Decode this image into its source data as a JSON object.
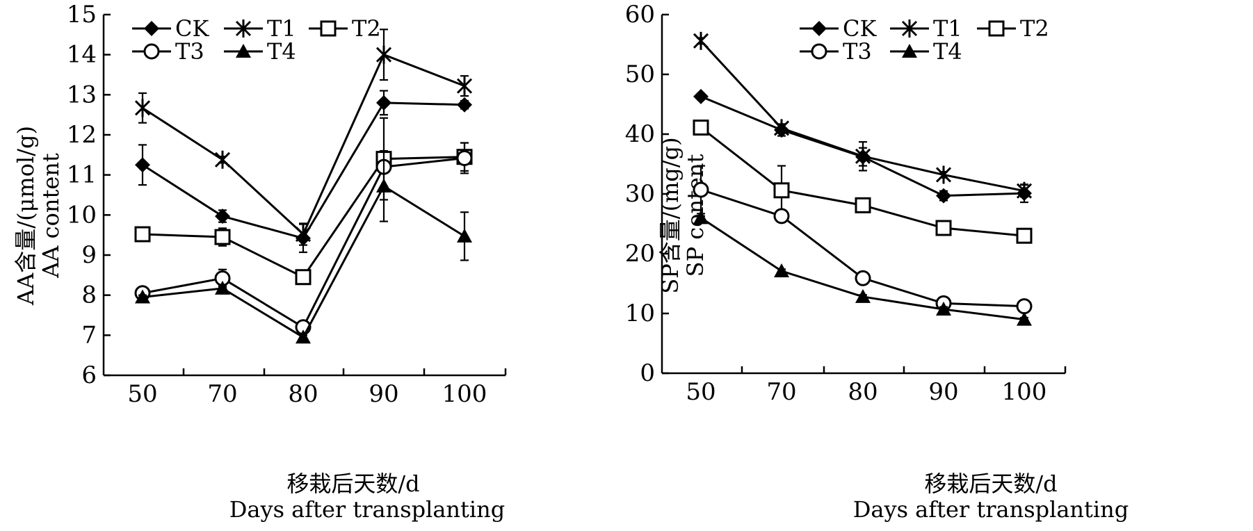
{
  "chart_data": [
    {
      "type": "line",
      "categories": [
        "50",
        "70",
        "80",
        "90",
        "100"
      ],
      "ylabel_cn": "AA含量/(μmol/g)",
      "ylabel_en": "AA content",
      "xlabel_cn": "移栽后天数/d",
      "xlabel_en": "Days after transplanting",
      "ylim": [
        6,
        15
      ],
      "yticks": [
        "6",
        "7",
        "8",
        "9",
        "10",
        "11",
        "12",
        "13",
        "14",
        "15"
      ],
      "legend_position": "top-left",
      "series": [
        {
          "name": "CK",
          "marker": "diamond",
          "values": [
            11.25,
            9.97,
            9.42,
            12.8,
            12.75
          ],
          "errors": [
            0.5,
            0.15,
            0.35,
            0.3,
            0.1
          ]
        },
        {
          "name": "T1",
          "marker": "asterisk",
          "values": [
            12.67,
            11.38,
            9.52,
            14.0,
            13.22
          ],
          "errors": [
            0.37,
            0.08,
            0.27,
            0.63,
            0.25
          ]
        },
        {
          "name": "T2",
          "marker": "square",
          "values": [
            9.52,
            9.45,
            8.45,
            11.4,
            11.45
          ],
          "errors": [
            0.1,
            0.22,
            0.08,
            1.02,
            0.35
          ]
        },
        {
          "name": "T3",
          "marker": "circle",
          "values": [
            8.05,
            8.42,
            7.2,
            11.2,
            11.42
          ],
          "errors": [
            0.07,
            0.22,
            0.08,
            0.1,
            0.38
          ]
        },
        {
          "name": "T4",
          "marker": "triangle",
          "values": [
            7.95,
            8.17,
            6.95,
            10.72,
            9.47
          ],
          "errors": [
            0.05,
            0.07,
            0.05,
            0.88,
            0.6
          ]
        }
      ]
    },
    {
      "type": "line",
      "categories": [
        "50",
        "70",
        "80",
        "90",
        "100"
      ],
      "ylabel_cn": "SP含量/(mg/g)",
      "ylabel_en": "SP content",
      "xlabel_cn": "移栽后天数/d",
      "xlabel_en": "Days after transplanting",
      "ylim": [
        0,
        60
      ],
      "yticks": [
        "0",
        "10",
        "20",
        "30",
        "40",
        "50",
        "60"
      ],
      "legend_position": "top-right",
      "series": [
        {
          "name": "CK",
          "marker": "diamond",
          "values": [
            46.3,
            40.7,
            36.2,
            29.7,
            30.1
          ],
          "errors": [
            0.5,
            1.0,
            1.5,
            0.8,
            1.5
          ]
        },
        {
          "name": "T1",
          "marker": "asterisk",
          "values": [
            55.6,
            41.0,
            36.3,
            33.2,
            30.5
          ],
          "errors": [
            0.5,
            0.6,
            2.4,
            0.5,
            1.0
          ]
        },
        {
          "name": "T2",
          "marker": "square",
          "values": [
            41.1,
            30.6,
            28.1,
            24.3,
            23.0
          ],
          "errors": [
            0.3,
            4.1,
            0.4,
            0.6,
            0.4
          ]
        },
        {
          "name": "T3",
          "marker": "circle",
          "values": [
            30.7,
            26.3,
            15.9,
            11.7,
            11.2
          ],
          "errors": [
            4.0,
            0.4,
            0.4,
            0.4,
            1.0
          ]
        },
        {
          "name": "T4",
          "marker": "triangle",
          "values": [
            26.0,
            17.1,
            12.8,
            10.7,
            9.0
          ],
          "errors": [
            0.3,
            0.3,
            0.3,
            0.4,
            0.3
          ]
        }
      ]
    }
  ]
}
